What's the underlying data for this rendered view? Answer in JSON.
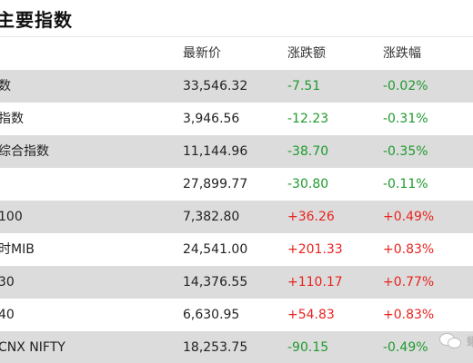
{
  "title": "主要指数",
  "columns": {
    "price": "最新价",
    "change": "涨跌额",
    "pct": "涨跌幅"
  },
  "rows": [
    {
      "name": "数",
      "price": "33,546.32",
      "change": "-7.51",
      "pct": "-0.02%",
      "direction": "down"
    },
    {
      "name": "指数",
      "price": "3,946.56",
      "change": "-12.23",
      "pct": "-0.31%",
      "direction": "down"
    },
    {
      "name": "综合指数",
      "price": "11,144.96",
      "change": "-38.70",
      "pct": "-0.35%",
      "direction": "down"
    },
    {
      "name": "",
      "price": "27,899.77",
      "change": "-30.80",
      "pct": "-0.11%",
      "direction": "down"
    },
    {
      "name": "100",
      "price": "7,382.80",
      "change": "+36.26",
      "pct": "+0.49%",
      "direction": "up"
    },
    {
      "name": "时MIB",
      "price": "24,541.00",
      "change": "+201.33",
      "pct": "+0.83%",
      "direction": "up"
    },
    {
      "name": "30",
      "price": "14,376.55",
      "change": "+110.17",
      "pct": "+0.77%",
      "direction": "up"
    },
    {
      "name": "40",
      "price": "6,630.95",
      "change": "+54.83",
      "pct": "+0.83%",
      "direction": "up"
    },
    {
      "name": "CNX NIFTY",
      "price": "18,253.75",
      "change": "-90.15",
      "pct": "-0.49%",
      "direction": "down"
    }
  ],
  "colors": {
    "up": "#e8231f",
    "down": "#1f9a2e",
    "row_shade": "#dcdcdc"
  },
  "watermark": {
    "icon": "wechat-bubble-icon",
    "text": "蝌"
  }
}
